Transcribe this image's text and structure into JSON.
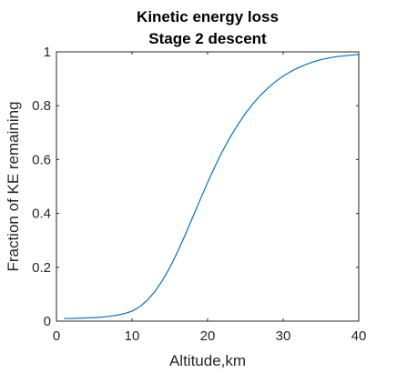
{
  "chart_data": {
    "type": "line",
    "title": [
      "Kinetic energy loss",
      "Stage 2 descent"
    ],
    "xlabel": "Altitude,km",
    "ylabel": "Fraction of KE remaining",
    "xlim": [
      0,
      40
    ],
    "ylim": [
      0,
      1
    ],
    "xticks": [
      "0",
      "10",
      "20",
      "30",
      "40"
    ],
    "yticks": [
      "0",
      "0.2",
      "0.4",
      "0.6",
      "0.8",
      "1"
    ],
    "grid": false,
    "series": [
      {
        "color": "#0072bd",
        "x": [
          1,
          2,
          3,
          4,
          5,
          6,
          7,
          8,
          9,
          10,
          11,
          12,
          13,
          14,
          15,
          16,
          17,
          18,
          19,
          20,
          21,
          22,
          23,
          24,
          25,
          26,
          27,
          28,
          29,
          30,
          31,
          32,
          33,
          34,
          35,
          36,
          37,
          38,
          39,
          40
        ],
        "y": [
          0.01,
          0.01,
          0.011,
          0.012,
          0.013,
          0.015,
          0.018,
          0.022,
          0.028,
          0.037,
          0.053,
          0.077,
          0.109,
          0.15,
          0.199,
          0.256,
          0.318,
          0.384,
          0.45,
          0.515,
          0.576,
          0.633,
          0.684,
          0.73,
          0.771,
          0.807,
          0.839,
          0.866,
          0.89,
          0.91,
          0.927,
          0.941,
          0.953,
          0.963,
          0.971,
          0.977,
          0.982,
          0.985,
          0.988,
          0.99
        ]
      }
    ]
  }
}
